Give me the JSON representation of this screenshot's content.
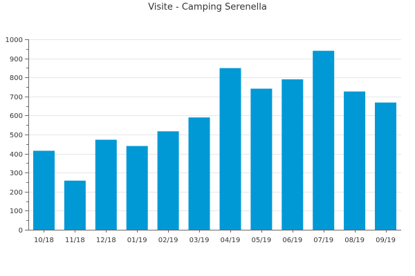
{
  "chart_data": {
    "type": "bar",
    "title": "Visite - Camping Serenella",
    "xlabel": "",
    "ylabel": "",
    "categories": [
      "10/18",
      "11/18",
      "12/18",
      "01/19",
      "02/19",
      "03/19",
      "04/19",
      "05/19",
      "06/19",
      "07/19",
      "08/19",
      "09/19"
    ],
    "values": [
      415,
      258,
      473,
      440,
      517,
      590,
      849,
      741,
      790,
      940,
      726,
      668
    ],
    "ylim": [
      0,
      1000
    ],
    "yticks": [
      0,
      100,
      200,
      300,
      400,
      500,
      600,
      700,
      800,
      900,
      1000
    ],
    "grid": true,
    "legend": "none",
    "colors": {
      "bar": "#0099d6",
      "grid": "#e6e6e6",
      "axis": "#666666",
      "text": "#333333"
    }
  }
}
